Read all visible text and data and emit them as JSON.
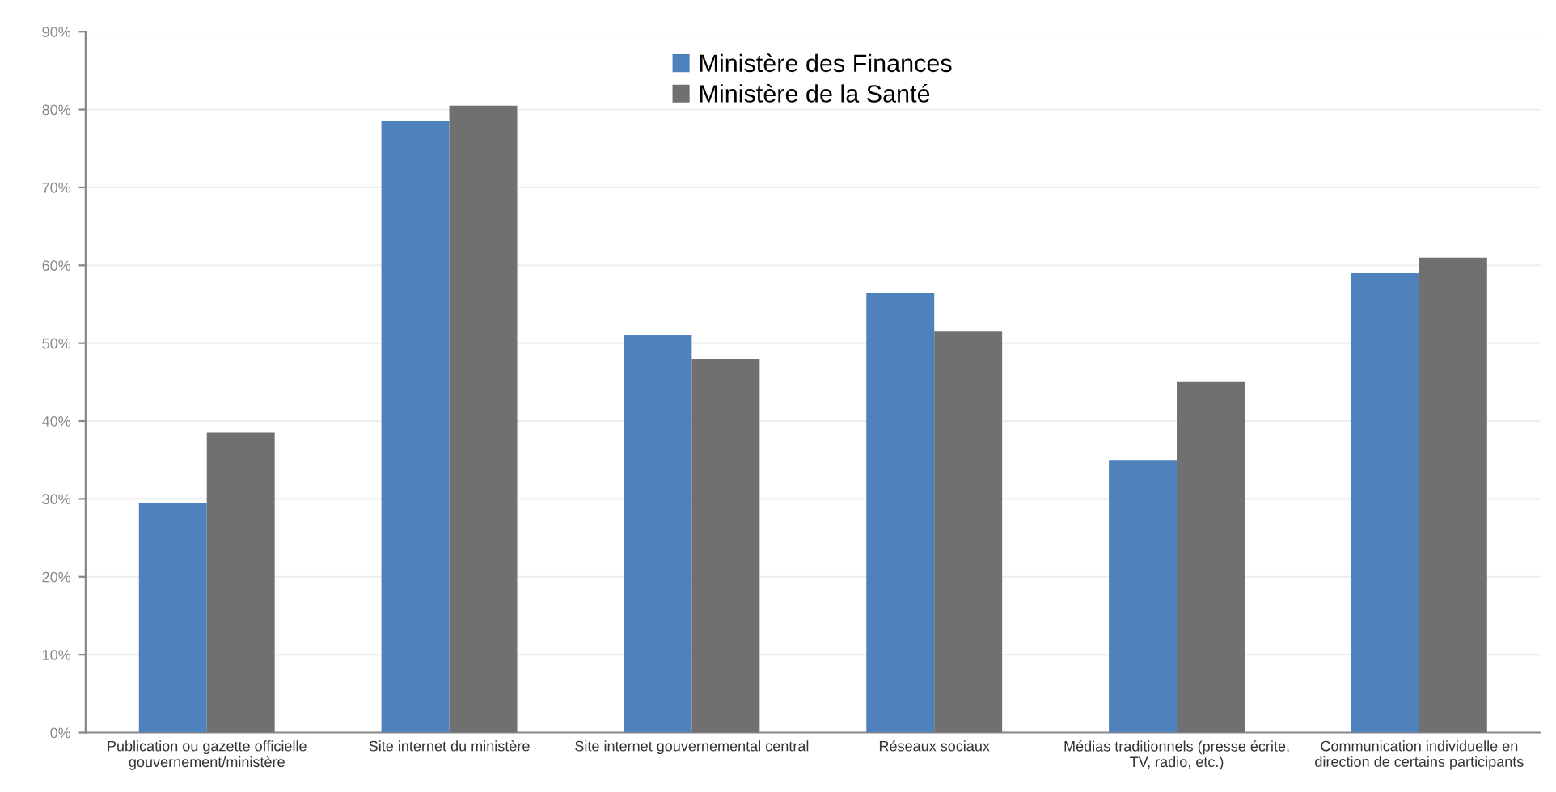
{
  "chart_data": {
    "type": "bar",
    "categories": [
      "Publication ou gazette officielle gouvernement/ministère",
      "Site internet du ministère",
      "Site internet gouvernemental central",
      "Réseaux sociaux",
      "Médias traditionnels (presse écrite, TV, radio, etc.)",
      "Communication individuelle en direction de certains participants"
    ],
    "series": [
      {
        "name": "Ministère des Finances",
        "color": "#4f81bd",
        "values": [
          29.5,
          78.5,
          51,
          56.5,
          35,
          59
        ]
      },
      {
        "name": "Ministère de la Santé",
        "color": "#707070",
        "values": [
          38.5,
          80.5,
          48,
          51.5,
          45,
          61
        ]
      }
    ],
    "ylim": [
      0,
      90
    ],
    "yticks": [
      {
        "value": 0,
        "label": "0%"
      },
      {
        "value": 10,
        "label": "10%"
      },
      {
        "value": 20,
        "label": "20%"
      },
      {
        "value": 30,
        "label": "30%"
      },
      {
        "value": 40,
        "label": "40%"
      },
      {
        "value": 50,
        "label": "50%"
      },
      {
        "value": 60,
        "label": "60%"
      },
      {
        "value": 70,
        "label": "70%"
      },
      {
        "value": 80,
        "label": "80%"
      },
      {
        "value": 90,
        "label": "90%"
      }
    ],
    "grid": "y",
    "legend": "top"
  }
}
